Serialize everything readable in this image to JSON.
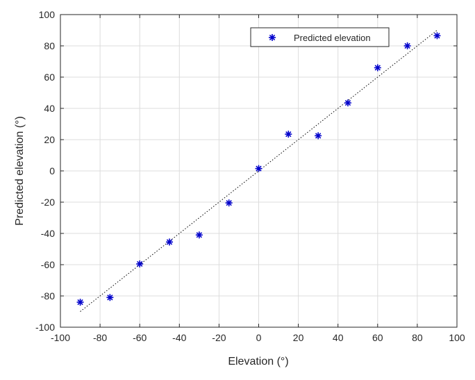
{
  "chart_data": {
    "type": "scatter",
    "title": "",
    "xlabel": "Elevation (°)",
    "ylabel": "Predicted elevation (°)",
    "xlim": [
      -100,
      100
    ],
    "ylim": [
      -100,
      100
    ],
    "x_ticks": [
      -100,
      -80,
      -60,
      -40,
      -20,
      0,
      20,
      40,
      60,
      80,
      100
    ],
    "y_ticks": [
      -100,
      -80,
      -60,
      -40,
      -20,
      0,
      20,
      40,
      60,
      80,
      100
    ],
    "grid": true,
    "legend_position": "top-right",
    "series": [
      {
        "name": "Predicted elevation",
        "marker": "asterisk",
        "color": "#0000cc",
        "x": [
          -90,
          -75,
          -60,
          -45,
          -30,
          -15,
          0,
          15,
          30,
          45,
          60,
          75,
          90
        ],
        "y": [
          -84,
          -81,
          -59.5,
          -45.5,
          -41,
          -20.5,
          1.5,
          23.5,
          22.5,
          43.5,
          66,
          80,
          86.5
        ]
      }
    ],
    "reference_line": {
      "style": "dotted",
      "color": "#000000",
      "x": [
        -90,
        90
      ],
      "y": [
        -90,
        90
      ]
    },
    "colors": {
      "axis": "#262626",
      "grid": "#dcdcdc"
    }
  }
}
